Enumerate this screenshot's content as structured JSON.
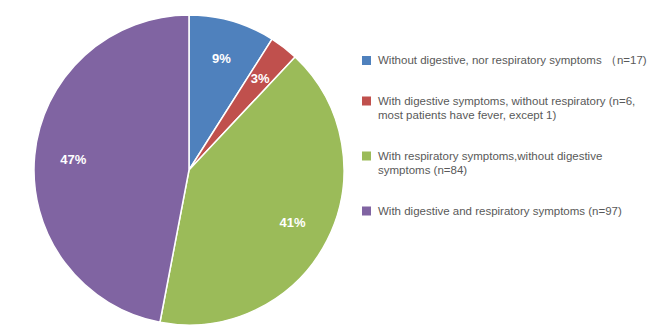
{
  "chart_data": {
    "type": "pie",
    "categories": [
      "Without digestive, nor  respiratory symptoms （n=17)",
      "With digestive symptoms, without respiratory (n=6, most patients have fever, except 1)",
      "With respiratory symptoms,without digestive symptoms (n=84)",
      "With digestive and respiratory symptoms (n=97)"
    ],
    "values": [
      9,
      3,
      41,
      47
    ],
    "value_labels": [
      "9%",
      "3%",
      "41%",
      "47%"
    ],
    "colors": [
      "#4f81bd",
      "#c0504d",
      "#9bbb59",
      "#8064a2"
    ],
    "data_labels": true,
    "legend": "right"
  }
}
